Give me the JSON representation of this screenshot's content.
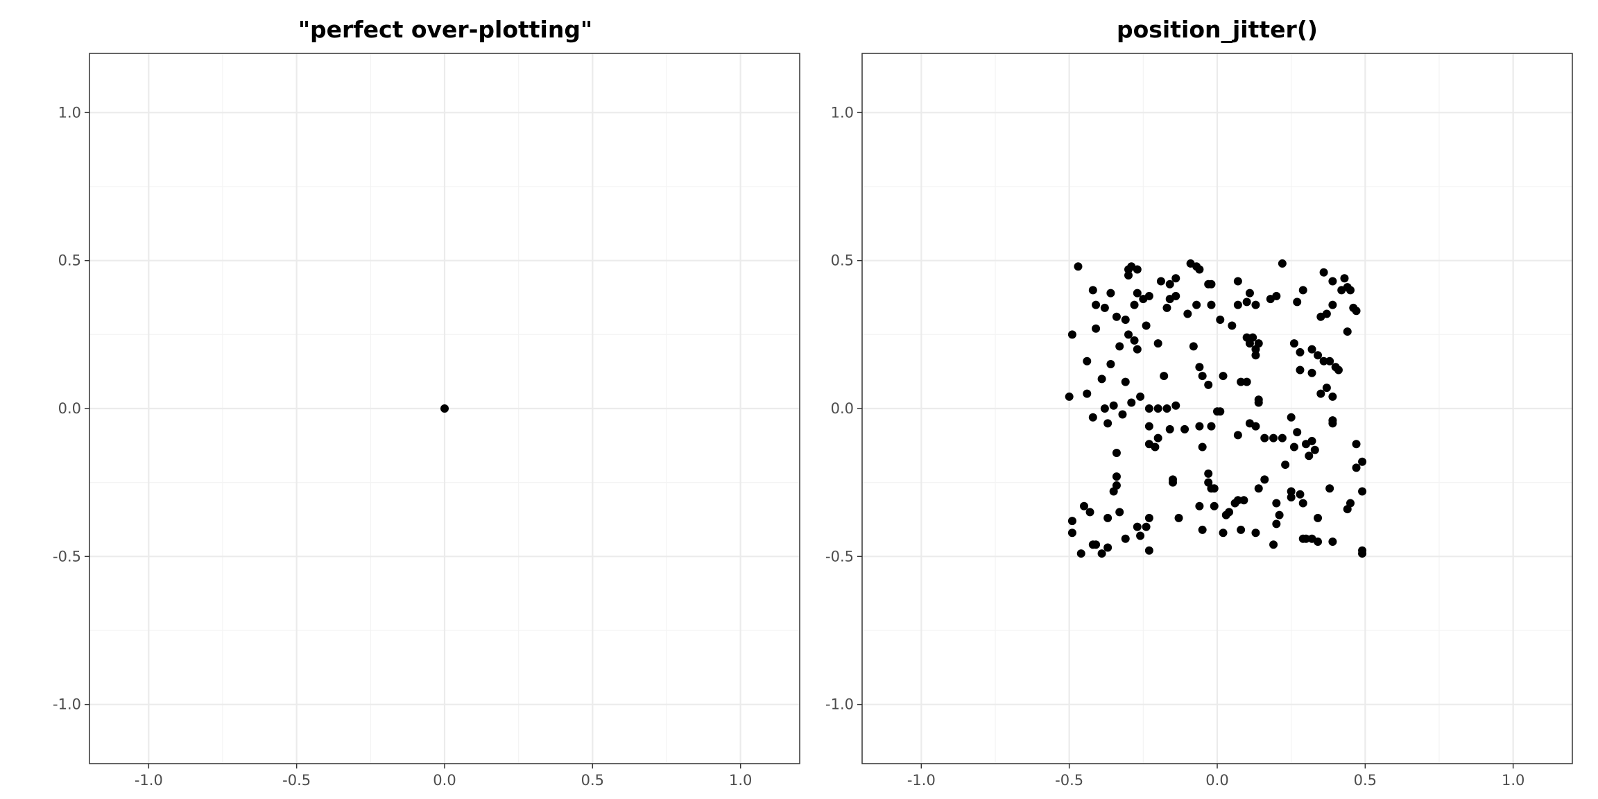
{
  "colors": {
    "background": "#ffffff",
    "panel_border": "#333333",
    "grid_major": "#ebebeb",
    "grid_minor": "#f3f3f3",
    "point": "#000000",
    "tick_text": "#4d4d4d",
    "title_text": "#000000"
  },
  "chart_data": [
    {
      "type": "scatter",
      "title": "\"perfect over-plotting\"",
      "xlim": [
        -1.2,
        1.2
      ],
      "ylim": [
        -1.2,
        1.2
      ],
      "x_ticks": [
        -1.0,
        -0.5,
        0.0,
        0.5,
        1.0
      ],
      "y_ticks": [
        -1.0,
        -0.5,
        0.0,
        0.5,
        1.0
      ],
      "x_tick_labels": [
        "-1.0",
        "-0.5",
        "0.0",
        "0.5",
        "1.0"
      ],
      "y_tick_labels": [
        "-1.0",
        "-0.5",
        "0.0",
        "0.5",
        "1.0"
      ],
      "grid": true,
      "points": [
        [
          0.0,
          0.0
        ]
      ]
    },
    {
      "type": "scatter",
      "title": "position_jitter()",
      "xlim": [
        -1.2,
        1.2
      ],
      "ylim": [
        -1.2,
        1.2
      ],
      "x_ticks": [
        -1.0,
        -0.5,
        0.0,
        0.5,
        1.0
      ],
      "y_ticks": [
        -1.0,
        -0.5,
        0.0,
        0.5,
        1.0
      ],
      "x_tick_labels": [
        "-1.0",
        "-0.5",
        "0.0",
        "0.5",
        "1.0"
      ],
      "y_tick_labels": [
        "-1.0",
        "-0.5",
        "0.0",
        "0.5",
        "1.0"
      ],
      "grid": true,
      "points": [
        [
          -0.47,
          0.48
        ],
        [
          -0.49,
          0.25
        ],
        [
          -0.5,
          0.04
        ],
        [
          -0.49,
          -0.38
        ],
        [
          -0.49,
          -0.42
        ],
        [
          -0.46,
          -0.49
        ],
        [
          -0.42,
          0.4
        ],
        [
          -0.41,
          0.35
        ],
        [
          -0.38,
          0.34
        ],
        [
          -0.36,
          0.39
        ],
        [
          -0.34,
          0.31
        ],
        [
          -0.41,
          0.27
        ],
        [
          -0.44,
          0.16
        ],
        [
          -0.39,
          0.1
        ],
        [
          -0.36,
          0.15
        ],
        [
          -0.33,
          0.21
        ],
        [
          -0.44,
          0.05
        ],
        [
          -0.42,
          -0.03
        ],
        [
          -0.38,
          0.0
        ],
        [
          -0.35,
          0.01
        ],
        [
          -0.37,
          -0.05
        ],
        [
          -0.32,
          -0.02
        ],
        [
          -0.34,
          -0.15
        ],
        [
          -0.34,
          -0.23
        ],
        [
          -0.34,
          -0.26
        ],
        [
          -0.35,
          -0.28
        ],
        [
          -0.33,
          -0.35
        ],
        [
          -0.37,
          -0.37
        ],
        [
          -0.43,
          -0.35
        ],
        [
          -0.45,
          -0.33
        ],
        [
          -0.42,
          -0.46
        ],
        [
          -0.41,
          -0.46
        ],
        [
          -0.39,
          -0.49
        ],
        [
          -0.37,
          -0.47
        ],
        [
          -0.31,
          -0.44
        ],
        [
          -0.27,
          -0.4
        ],
        [
          -0.26,
          -0.43
        ],
        [
          -0.24,
          -0.4
        ],
        [
          -0.23,
          -0.37
        ],
        [
          -0.23,
          -0.48
        ],
        [
          -0.3,
          0.45
        ],
        [
          -0.3,
          0.47
        ],
        [
          -0.29,
          0.48
        ],
        [
          -0.27,
          0.47
        ],
        [
          -0.27,
          0.39
        ],
        [
          -0.25,
          0.37
        ],
        [
          -0.23,
          0.38
        ],
        [
          -0.28,
          0.35
        ],
        [
          -0.31,
          0.3
        ],
        [
          -0.3,
          0.25
        ],
        [
          -0.28,
          0.23
        ],
        [
          -0.27,
          0.2
        ],
        [
          -0.24,
          0.28
        ],
        [
          -0.2,
          0.22
        ],
        [
          -0.19,
          0.43
        ],
        [
          -0.16,
          0.42
        ],
        [
          -0.16,
          0.37
        ],
        [
          -0.17,
          0.34
        ],
        [
          -0.14,
          0.44
        ],
        [
          -0.14,
          0.38
        ],
        [
          -0.1,
          0.32
        ],
        [
          -0.09,
          0.49
        ],
        [
          -0.07,
          0.48
        ],
        [
          -0.06,
          0.47
        ],
        [
          -0.03,
          0.42
        ],
        [
          -0.07,
          0.35
        ],
        [
          -0.02,
          0.35
        ],
        [
          -0.08,
          0.21
        ],
        [
          -0.06,
          0.14
        ],
        [
          -0.05,
          0.11
        ],
        [
          -0.03,
          0.08
        ],
        [
          -0.31,
          0.09
        ],
        [
          -0.29,
          0.02
        ],
        [
          -0.26,
          0.04
        ],
        [
          -0.23,
          0.0
        ],
        [
          -0.2,
          0.0
        ],
        [
          -0.17,
          0.0
        ],
        [
          -0.14,
          0.01
        ],
        [
          -0.18,
          0.11
        ],
        [
          -0.23,
          -0.06
        ],
        [
          -0.2,
          -0.1
        ],
        [
          -0.23,
          -0.12
        ],
        [
          -0.21,
          -0.13
        ],
        [
          -0.16,
          -0.07
        ],
        [
          -0.11,
          -0.07
        ],
        [
          -0.06,
          -0.06
        ],
        [
          -0.02,
          -0.06
        ],
        [
          -0.05,
          -0.13
        ],
        [
          -0.15,
          -0.24
        ],
        [
          -0.15,
          -0.25
        ],
        [
          -0.13,
          -0.37
        ],
        [
          -0.06,
          -0.33
        ],
        [
          -0.03,
          -0.22
        ],
        [
          -0.03,
          -0.25
        ],
        [
          -0.02,
          -0.27
        ],
        [
          -0.01,
          -0.27
        ],
        [
          -0.01,
          -0.33
        ],
        [
          -0.05,
          -0.41
        ],
        [
          0.0,
          -0.01
        ],
        [
          0.01,
          -0.01
        ],
        [
          0.02,
          0.11
        ],
        [
          0.01,
          0.3
        ],
        [
          0.03,
          -0.36
        ],
        [
          0.02,
          -0.42
        ],
        [
          0.04,
          -0.35
        ],
        [
          0.06,
          -0.32
        ],
        [
          0.07,
          -0.31
        ],
        [
          0.09,
          -0.31
        ],
        [
          0.08,
          -0.41
        ],
        [
          0.05,
          0.28
        ],
        [
          0.07,
          0.35
        ],
        [
          0.07,
          0.43
        ],
        [
          0.1,
          0.36
        ],
        [
          0.11,
          0.39
        ],
        [
          0.13,
          0.35
        ],
        [
          0.08,
          0.09
        ],
        [
          0.1,
          0.09
        ],
        [
          0.1,
          0.24
        ],
        [
          0.12,
          0.24
        ],
        [
          0.11,
          0.22
        ],
        [
          0.13,
          0.18
        ],
        [
          0.14,
          0.22
        ],
        [
          0.13,
          0.2
        ],
        [
          0.11,
          -0.05
        ],
        [
          0.13,
          -0.06
        ],
        [
          0.14,
          0.03
        ],
        [
          0.14,
          0.02
        ],
        [
          0.16,
          -0.1
        ],
        [
          0.19,
          -0.1
        ],
        [
          0.22,
          -0.1
        ],
        [
          0.16,
          -0.24
        ],
        [
          0.14,
          -0.27
        ],
        [
          0.13,
          -0.42
        ],
        [
          0.2,
          -0.32
        ],
        [
          0.21,
          -0.36
        ],
        [
          0.2,
          -0.39
        ],
        [
          0.19,
          -0.46
        ],
        [
          0.18,
          0.37
        ],
        [
          0.2,
          0.38
        ],
        [
          0.22,
          0.49
        ],
        [
          0.26,
          0.22
        ],
        [
          0.27,
          0.36
        ],
        [
          0.29,
          0.4
        ],
        [
          0.28,
          0.19
        ],
        [
          0.28,
          0.13
        ],
        [
          0.32,
          0.2
        ],
        [
          0.34,
          0.18
        ],
        [
          0.32,
          0.12
        ],
        [
          0.36,
          0.16
        ],
        [
          0.38,
          0.16
        ],
        [
          0.37,
          0.07
        ],
        [
          0.35,
          0.05
        ],
        [
          0.4,
          0.14
        ],
        [
          0.41,
          0.13
        ],
        [
          0.35,
          0.31
        ],
        [
          0.37,
          0.32
        ],
        [
          0.39,
          0.35
        ],
        [
          0.36,
          0.46
        ],
        [
          0.39,
          0.43
        ],
        [
          0.43,
          0.44
        ],
        [
          0.44,
          0.41
        ],
        [
          0.45,
          0.4
        ],
        [
          0.42,
          0.4
        ],
        [
          0.46,
          0.34
        ],
        [
          0.47,
          0.33
        ],
        [
          0.44,
          0.26
        ],
        [
          0.39,
          0.04
        ],
        [
          0.39,
          -0.04
        ],
        [
          0.39,
          -0.05
        ],
        [
          0.23,
          -0.19
        ],
        [
          0.25,
          -0.03
        ],
        [
          0.26,
          -0.13
        ],
        [
          0.27,
          -0.08
        ],
        [
          0.3,
          -0.12
        ],
        [
          0.32,
          -0.11
        ],
        [
          0.33,
          -0.14
        ],
        [
          0.31,
          -0.16
        ],
        [
          0.25,
          -0.28
        ],
        [
          0.25,
          -0.3
        ],
        [
          0.28,
          -0.29
        ],
        [
          0.29,
          -0.32
        ],
        [
          0.29,
          -0.44
        ],
        [
          0.3,
          -0.44
        ],
        [
          0.32,
          -0.44
        ],
        [
          0.34,
          -0.45
        ],
        [
          0.34,
          -0.37
        ],
        [
          0.38,
          -0.27
        ],
        [
          0.39,
          -0.45
        ],
        [
          0.44,
          -0.34
        ],
        [
          0.45,
          -0.32
        ],
        [
          0.47,
          -0.12
        ],
        [
          0.47,
          -0.2
        ],
        [
          0.49,
          -0.18
        ],
        [
          0.49,
          -0.28
        ],
        [
          0.49,
          -0.49
        ],
        [
          0.49,
          -0.48
        ],
        [
          0.07,
          -0.09
        ],
        [
          -0.02,
          0.42
        ]
      ]
    }
  ]
}
